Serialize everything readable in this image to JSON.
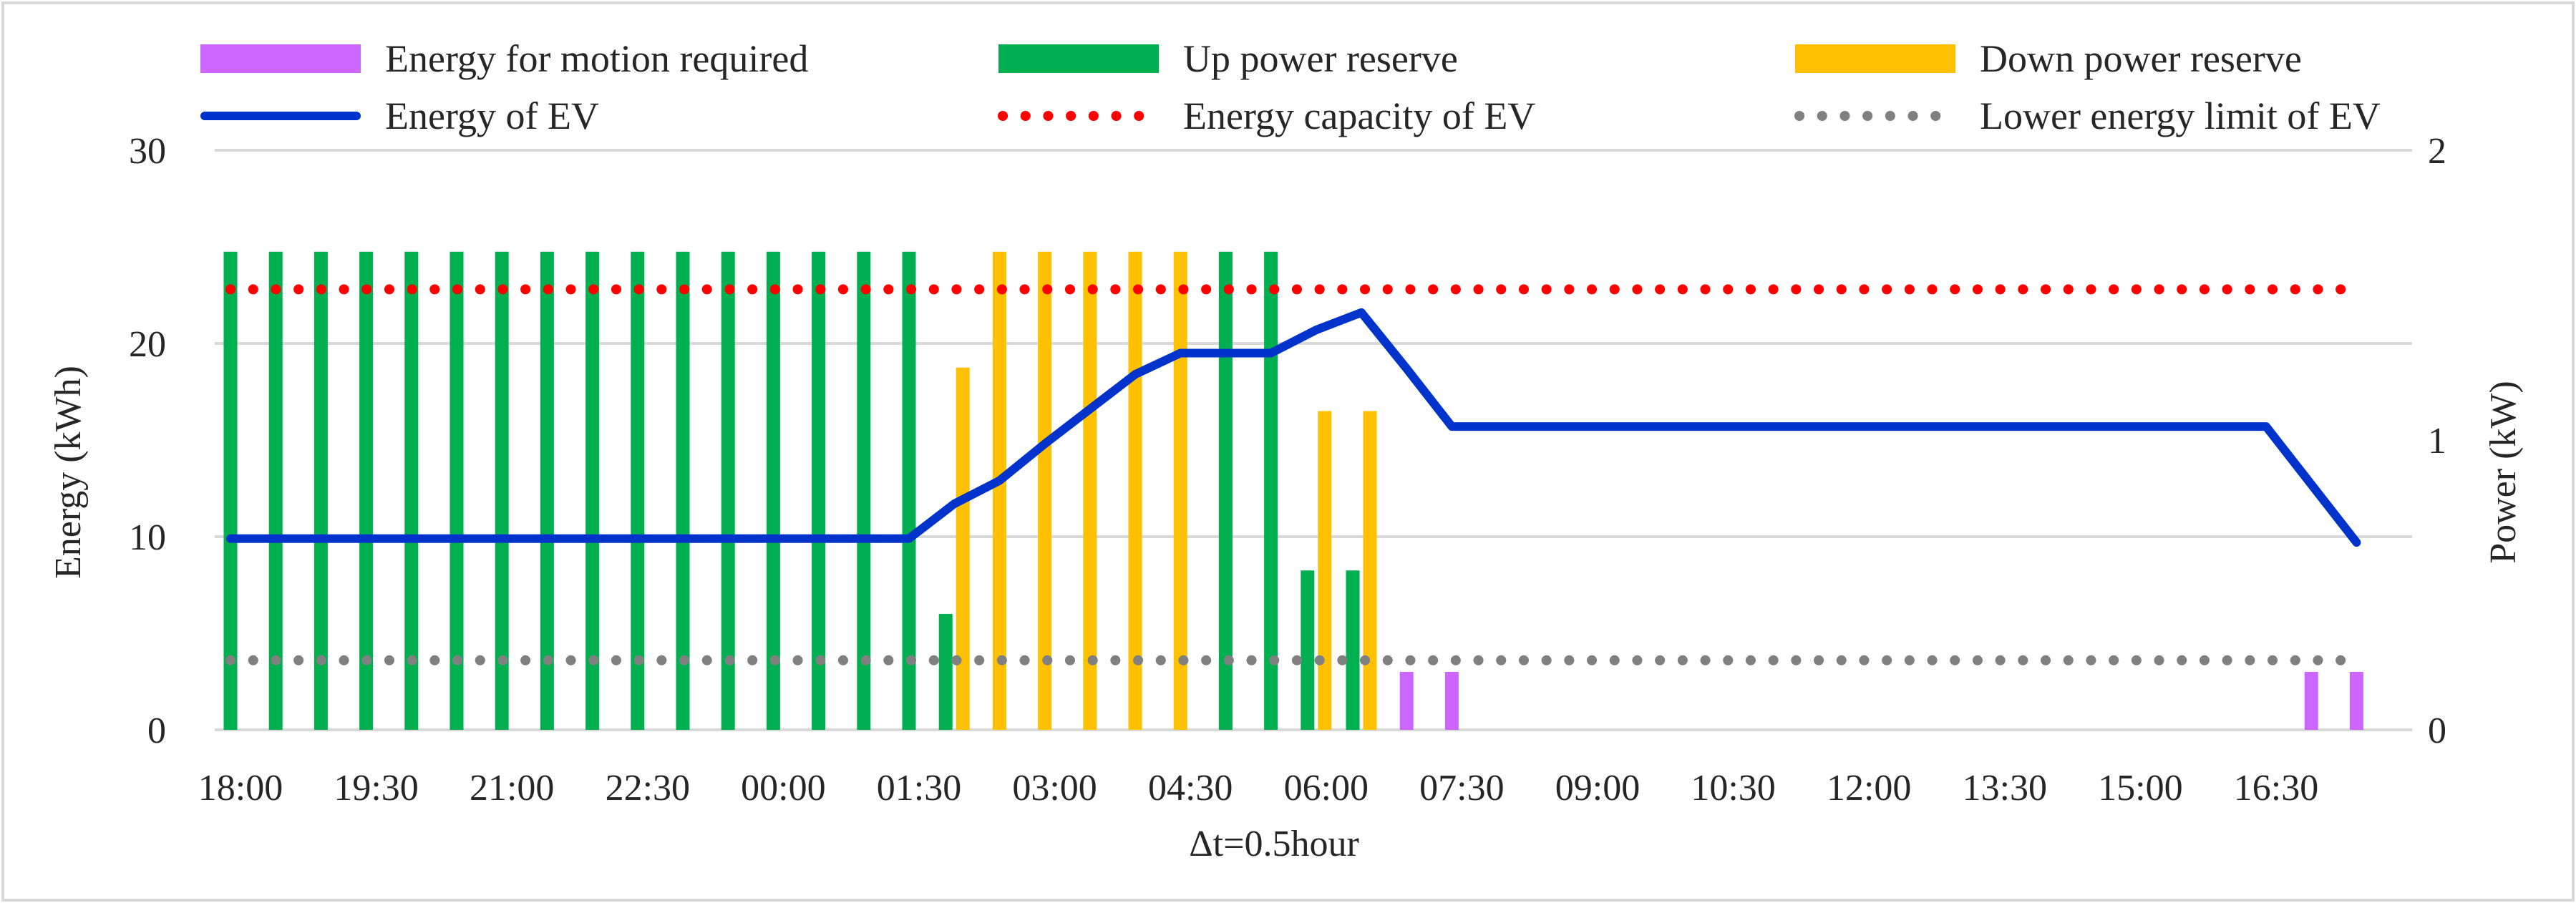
{
  "chart_data": {
    "type": "bar+line",
    "xlabel": "Δt=0.5hour",
    "ylabel_left": "Energy (kWh)",
    "ylabel_right": "Power (kW)",
    "ylim_left": [
      0,
      30
    ],
    "ylim_right": [
      0,
      2
    ],
    "yticks_left": [
      "0",
      "10",
      "20",
      "30"
    ],
    "yticks_right": [
      "0",
      "1",
      "2"
    ],
    "grid": true,
    "legend_position": "top",
    "x_tick_labels": [
      "18:00",
      "19:30",
      "21:00",
      "22:30",
      "00:00",
      "01:30",
      "03:00",
      "04:30",
      "06:00",
      "07:30",
      "09:00",
      "10:30",
      "12:00",
      "13:30",
      "15:00",
      "16:30"
    ],
    "x": [
      "18:00",
      "18:30",
      "19:00",
      "19:30",
      "20:00",
      "20:30",
      "21:00",
      "21:30",
      "22:00",
      "22:30",
      "23:00",
      "23:30",
      "00:00",
      "00:30",
      "01:00",
      "01:30",
      "02:00",
      "02:30",
      "03:00",
      "03:30",
      "04:00",
      "04:30",
      "05:00",
      "05:30",
      "06:00",
      "06:30",
      "07:00",
      "07:30",
      "08:00",
      "08:30",
      "09:00",
      "09:30",
      "10:00",
      "10:30",
      "11:00",
      "11:30",
      "12:00",
      "12:30",
      "13:00",
      "13:30",
      "14:00",
      "14:30",
      "15:00",
      "15:30",
      "16:00",
      "16:30",
      "17:00",
      "17:30"
    ],
    "series": [
      {
        "name": "Energy for motion required",
        "kind": "bar",
        "axis": "right",
        "color": "#cc66ff",
        "values": [
          0,
          0,
          0,
          0,
          0,
          0,
          0,
          0,
          0,
          0,
          0,
          0,
          0,
          0,
          0,
          0,
          0,
          0,
          0,
          0,
          0,
          0,
          0,
          0,
          0,
          0,
          0.2,
          0.2,
          0,
          0,
          0,
          0,
          0,
          0,
          0,
          0,
          0,
          0,
          0,
          0,
          0,
          0,
          0,
          0,
          0,
          0,
          0.2,
          0.2
        ]
      },
      {
        "name": "Up power reserve",
        "kind": "bar",
        "axis": "right",
        "color": "#00b050",
        "values": [
          1.65,
          1.65,
          1.65,
          1.65,
          1.65,
          1.65,
          1.65,
          1.65,
          1.65,
          1.65,
          1.65,
          1.65,
          1.65,
          1.65,
          1.65,
          1.65,
          0.4,
          0,
          0,
          0,
          0,
          0,
          1.65,
          1.65,
          0.55,
          0.55,
          0,
          0,
          0,
          0,
          0,
          0,
          0,
          0,
          0,
          0,
          0,
          0,
          0,
          0,
          0,
          0,
          0,
          0,
          0,
          0,
          0,
          0
        ]
      },
      {
        "name": "Down power reserve",
        "kind": "bar",
        "axis": "right",
        "color": "#ffc000",
        "values": [
          0,
          0,
          0,
          0,
          0,
          0,
          0,
          0,
          0,
          0,
          0,
          0,
          0,
          0,
          0,
          0,
          1.25,
          1.65,
          1.65,
          1.65,
          1.65,
          1.65,
          0,
          0,
          1.1,
          1.1,
          0,
          0,
          0,
          0,
          0,
          0,
          0,
          0,
          0,
          0,
          0,
          0,
          0,
          0,
          0,
          0,
          0,
          0,
          0,
          0,
          0,
          0
        ]
      },
      {
        "name": "Energy of EV",
        "kind": "line",
        "axis": "left",
        "color": "#0033cc",
        "values": [
          9.9,
          9.9,
          9.9,
          9.9,
          9.9,
          9.9,
          9.9,
          9.9,
          9.9,
          9.9,
          9.9,
          9.9,
          9.9,
          9.9,
          9.9,
          9.9,
          11.7,
          12.9,
          14.8,
          16.6,
          18.4,
          19.5,
          19.5,
          19.5,
          20.7,
          21.6,
          18.7,
          15.7,
          15.7,
          15.7,
          15.7,
          15.7,
          15.7,
          15.7,
          15.7,
          15.7,
          15.7,
          15.7,
          15.7,
          15.7,
          15.7,
          15.7,
          15.7,
          15.7,
          15.7,
          15.7,
          12.7,
          9.7
        ]
      },
      {
        "name": "Energy capacity of EV",
        "kind": "line",
        "axis": "left",
        "color": "#ff0000",
        "values": [
          22.8,
          22.8,
          22.8,
          22.8,
          22.8,
          22.8,
          22.8,
          22.8,
          22.8,
          22.8,
          22.8,
          22.8,
          22.8,
          22.8,
          22.8,
          22.8,
          22.8,
          22.8,
          22.8,
          22.8,
          22.8,
          22.8,
          22.8,
          22.8,
          22.8,
          22.8,
          22.8,
          22.8,
          22.8,
          22.8,
          22.8,
          22.8,
          22.8,
          22.8,
          22.8,
          22.8,
          22.8,
          22.8,
          22.8,
          22.8,
          22.8,
          22.8,
          22.8,
          22.8,
          22.8,
          22.8,
          22.8,
          22.8
        ]
      },
      {
        "name": "Lower energy limit of EV",
        "kind": "line",
        "axis": "left",
        "color": "#808080",
        "values": [
          3.6,
          3.6,
          3.6,
          3.6,
          3.6,
          3.6,
          3.6,
          3.6,
          3.6,
          3.6,
          3.6,
          3.6,
          3.6,
          3.6,
          3.6,
          3.6,
          3.6,
          3.6,
          3.6,
          3.6,
          3.6,
          3.6,
          3.6,
          3.6,
          3.6,
          3.6,
          3.6,
          3.6,
          3.6,
          3.6,
          3.6,
          3.6,
          3.6,
          3.6,
          3.6,
          3.6,
          3.6,
          3.6,
          3.6,
          3.6,
          3.6,
          3.6,
          3.6,
          3.6,
          3.6,
          3.6,
          3.6,
          3.6
        ]
      }
    ]
  }
}
